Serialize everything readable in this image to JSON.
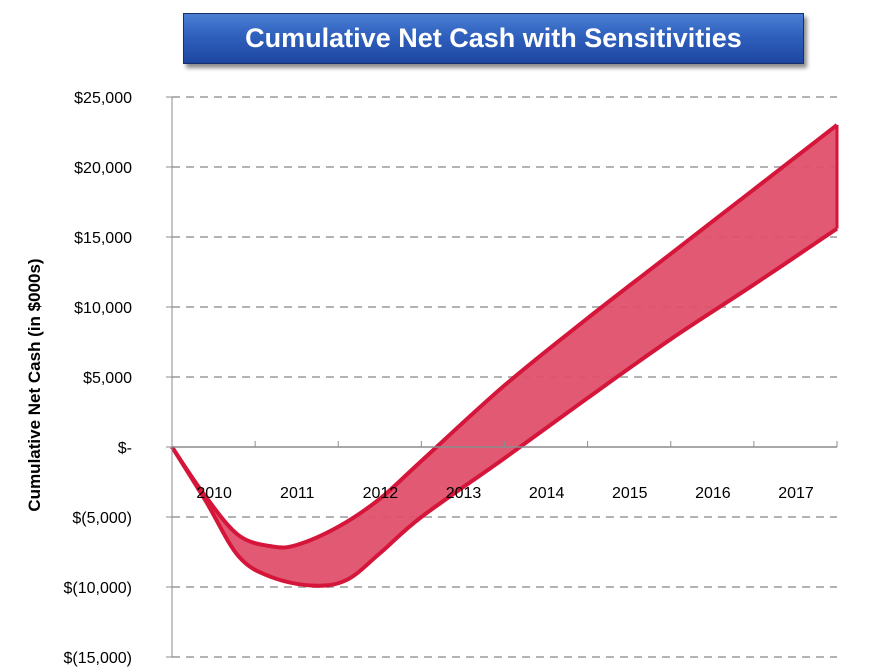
{
  "chart_data": {
    "type": "area",
    "title": "Cumulative Net Cash with Sensitivities",
    "xlabel": "",
    "ylabel": "Cumulative Net Cash (in $000s)",
    "categories": [
      "2010",
      "2011",
      "2012",
      "2013",
      "2014",
      "2015",
      "2016",
      "2017"
    ],
    "x_start": 2009,
    "ylim": [
      -15000,
      25000
    ],
    "yticks": [
      {
        "value": 25000,
        "label": "$25,000"
      },
      {
        "value": 20000,
        "label": "$20,000"
      },
      {
        "value": 15000,
        "label": "$15,000"
      },
      {
        "value": 10000,
        "label": "$10,000"
      },
      {
        "value": 5000,
        "label": "$5,000"
      },
      {
        "value": 0,
        "label": "$-"
      },
      {
        "value": -5000,
        "label": "$(5,000)"
      },
      {
        "value": -10000,
        "label": "$(10,000)"
      },
      {
        "value": -15000,
        "label": "$(15,000)"
      }
    ],
    "grid": "horizontal dashed",
    "series": [
      {
        "role": "upper",
        "x": [
          2009,
          2009.4,
          2009.8,
          2010.2,
          2010.5,
          2011.0,
          2011.5,
          2012.0,
          2013.0,
          2014.0,
          2015.0,
          2016.0,
          2017.0
        ],
        "values": [
          0,
          -3500,
          -6300,
          -7100,
          -7000,
          -5700,
          -3700,
          -1000,
          4400,
          9200,
          13800,
          18400,
          23000
        ]
      },
      {
        "role": "lower",
        "x": [
          2009,
          2009.4,
          2009.8,
          2010.2,
          2010.7,
          2011.1,
          2011.5,
          2012.0,
          2013.0,
          2014.0,
          2015.0,
          2016.0,
          2017.0
        ],
        "values": [
          0,
          -3800,
          -7800,
          -9300,
          -9900,
          -9500,
          -7600,
          -5000,
          -800,
          3500,
          7700,
          11600,
          15600
        ]
      }
    ],
    "colors": {
      "band_fill": "#e0506d",
      "band_edge": "#d5163a",
      "grid": "#b3b3b3",
      "axis": "#8c8c8c"
    }
  }
}
